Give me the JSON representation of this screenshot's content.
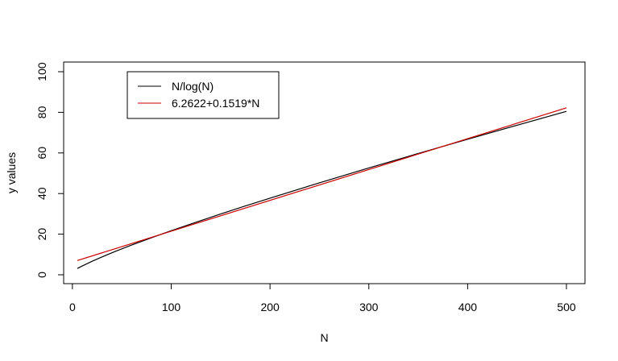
{
  "chart_data": {
    "type": "line",
    "title": "",
    "xlabel": "N",
    "ylabel": "y values",
    "xlim": [
      5,
      500
    ],
    "ylim": [
      0,
      100
    ],
    "x_ticks": [
      0,
      100,
      200,
      300,
      400,
      500
    ],
    "y_ticks": [
      0,
      20,
      40,
      60,
      80,
      100
    ],
    "grid": false,
    "legend_position": "top-left",
    "series": [
      {
        "name": "N/log(N)",
        "color": "#000000",
        "x": [
          5,
          10,
          20,
          30,
          40,
          50,
          60,
          80,
          100,
          125,
          150,
          175,
          200,
          250,
          300,
          350,
          400,
          450,
          500
        ],
        "y": [
          3.11,
          4.34,
          6.68,
          8.82,
          10.84,
          12.78,
          14.65,
          18.26,
          21.71,
          25.89,
          29.94,
          33.89,
          37.75,
          45.28,
          52.6,
          59.74,
          66.76,
          73.67,
          80.46
        ]
      },
      {
        "name": "6.2622+0.1519*N",
        "color": "#cc0000",
        "x": [
          5,
          500
        ],
        "y": [
          7.02,
          82.21
        ]
      }
    ]
  }
}
